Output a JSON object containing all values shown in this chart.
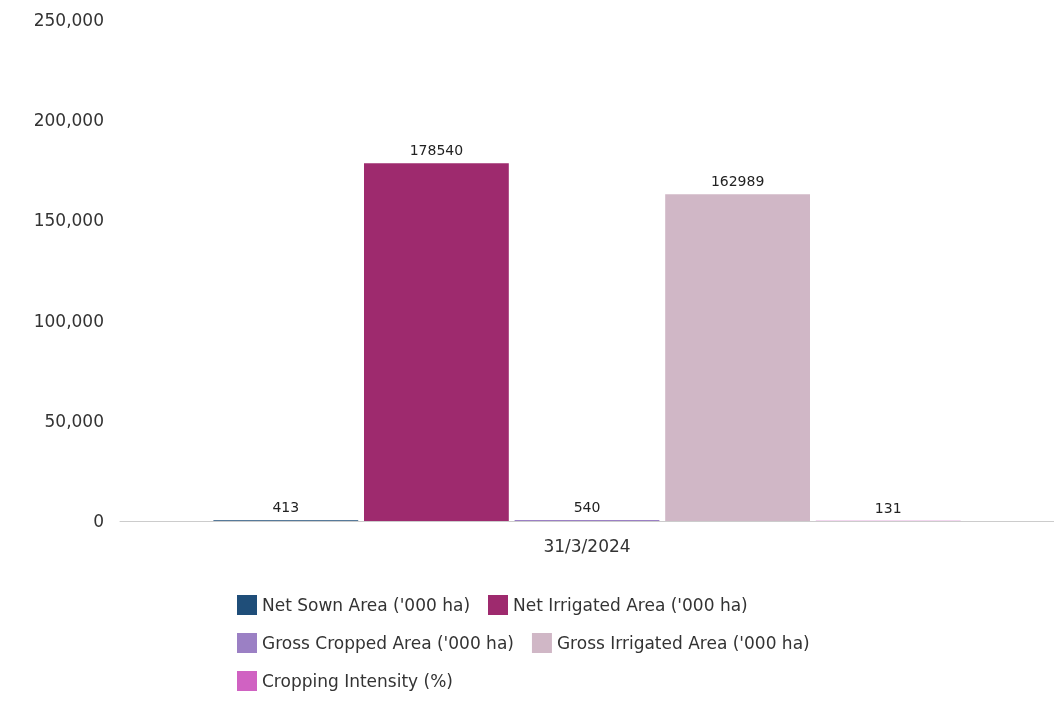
{
  "chart_data": {
    "type": "bar",
    "categories": [
      "31/3/2024"
    ],
    "series": [
      {
        "name": "Net Sown Area ('000 ha)",
        "color": "#1f4e79",
        "values": [
          413
        ]
      },
      {
        "name": "Net Irrigated Area ('000 ha)",
        "color": "#9e2a6e",
        "values": [
          178540
        ]
      },
      {
        "name": "Gross Cropped Area ('000 ha)",
        "color": "#9b80c4",
        "values": [
          540
        ]
      },
      {
        "name": "Gross Irrigated Area ('000 ha)",
        "color": "#d0b7c6",
        "values": [
          162989
        ]
      },
      {
        "name": "Cropping Intensity (%)",
        "color": "#d062c2",
        "values": [
          131
        ]
      }
    ],
    "ylim": [
      0,
      250000
    ],
    "yticks": [
      0,
      {
        "value": 50000,
        "label": "50,000"
      },
      {
        "value": 100000,
        "label": "100,000"
      },
      {
        "value": 150000,
        "label": "150,000"
      },
      {
        "value": 200000,
        "label": "200,000"
      },
      {
        "value": 250000,
        "label": "250,000"
      }
    ],
    "grid": false,
    "legend": "bottom",
    "data_labels": true
  }
}
